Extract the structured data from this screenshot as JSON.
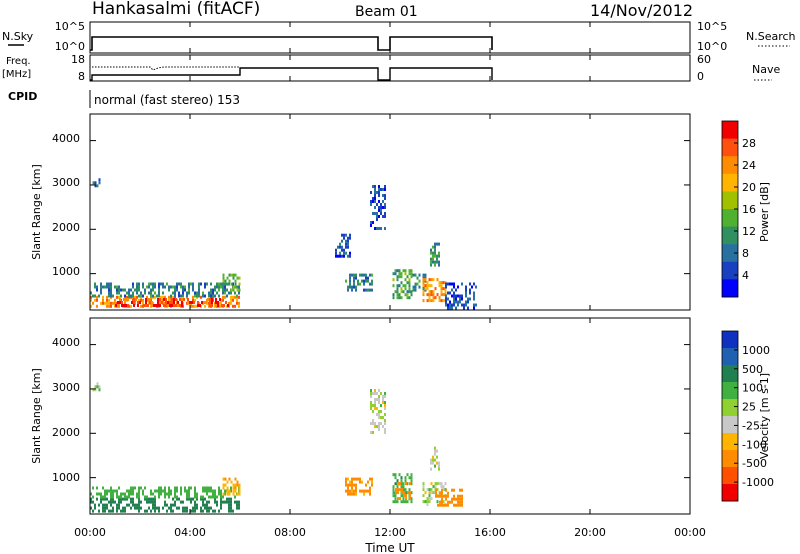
{
  "header": {
    "station": "Hankasalmi (fitACF)",
    "beam": "Beam 01",
    "date": "14/Nov/2012"
  },
  "noise_panel": {
    "left_label": "N.Sky",
    "right_label": "N.Search",
    "left_ticks": [
      "10^5",
      "10^0"
    ],
    "right_ticks": [
      "10^5",
      "10^0"
    ]
  },
  "freq_panel": {
    "left_label_1": "Freq.",
    "left_label_2": "[MHz]",
    "right_label": "Nave",
    "left_ticks": [
      "18",
      "8"
    ],
    "right_ticks": [
      "60",
      "0"
    ]
  },
  "cpid": {
    "label": "CPID",
    "value": "normal (fast stereo) 153"
  },
  "time_axis": {
    "label": "Time UT",
    "ticks": [
      "00:00",
      "04:00",
      "08:00",
      "12:00",
      "16:00",
      "20:00",
      "00:00"
    ]
  },
  "power_colorbar": {
    "label": "Power [dB]",
    "ticks": [
      "28",
      "24",
      "20",
      "16",
      "12",
      "8",
      "4"
    ],
    "colors": [
      "#f00000",
      "#ff5010",
      "#ff8c00",
      "#ffb400",
      "#a0c000",
      "#50b030",
      "#309060",
      "#2870a0",
      "#1840c0",
      "#0000ff"
    ]
  },
  "velocity_colorbar": {
    "label": "Velocity [m s-1]",
    "ticks": [
      "1000",
      "500",
      "100",
      "25",
      "-25",
      "-100",
      "-500",
      "-1000"
    ],
    "colors": [
      "#1030c0",
      "#2060b0",
      "#208050",
      "#40b040",
      "#90d030",
      "#c8c8c8",
      "#ffb400",
      "#ff8c00",
      "#ff5000",
      "#f00000"
    ]
  },
  "chart_data": [
    {
      "type": "heatmap",
      "title": "Power",
      "xlabel": "Time UT",
      "ylabel": "Slant Range [km]",
      "xlim": [
        0,
        24
      ],
      "ylim": [
        180,
        4600
      ],
      "yticks": [
        1000,
        2000,
        3000,
        4000
      ],
      "units": "dB",
      "clim": [
        0,
        30
      ],
      "regions": [
        {
          "t0": 0.0,
          "t1": 6.0,
          "r0": 250,
          "r1": 500,
          "value": 22
        },
        {
          "t0": 0.0,
          "t1": 6.0,
          "r0": 500,
          "r1": 800,
          "value": 9
        },
        {
          "t0": 1.0,
          "t1": 5.5,
          "r0": 300,
          "r1": 450,
          "value": 26
        },
        {
          "t0": 0.1,
          "t1": 0.4,
          "r0": 2950,
          "r1": 3150,
          "value": 7
        },
        {
          "t0": 5.3,
          "t1": 6.0,
          "r0": 600,
          "r1": 1000,
          "value": 14
        },
        {
          "t0": 9.8,
          "t1": 10.4,
          "r0": 1400,
          "r1": 1900,
          "value": 6
        },
        {
          "t0": 10.2,
          "t1": 11.3,
          "r0": 650,
          "r1": 1000,
          "value": 9
        },
        {
          "t0": 11.2,
          "t1": 11.8,
          "r0": 2000,
          "r1": 3000,
          "value": 5
        },
        {
          "t0": 12.1,
          "t1": 12.9,
          "r0": 450,
          "r1": 1100,
          "value": 12
        },
        {
          "t0": 12.9,
          "t1": 13.4,
          "r0": 650,
          "r1": 1000,
          "value": 10
        },
        {
          "t0": 13.3,
          "t1": 14.2,
          "r0": 400,
          "r1": 900,
          "value": 22
        },
        {
          "t0": 13.6,
          "t1": 14.0,
          "r0": 1200,
          "r1": 1700,
          "value": 11
        },
        {
          "t0": 14.2,
          "t1": 15.4,
          "r0": 250,
          "r1": 800,
          "value": 5
        }
      ]
    },
    {
      "type": "heatmap",
      "title": "Velocity",
      "xlabel": "Time UT",
      "ylabel": "Slant Range [km]",
      "xlim": [
        0,
        24
      ],
      "ylim": [
        180,
        4600
      ],
      "yticks": [
        1000,
        2000,
        3000,
        4000
      ],
      "units": "m s-1",
      "regions": [
        {
          "t0": 0.0,
          "t1": 6.0,
          "r0": 250,
          "r1": 550,
          "value": 150
        },
        {
          "t0": 0.0,
          "t1": 6.0,
          "r0": 550,
          "r1": 800,
          "value": 60
        },
        {
          "t0": 0.1,
          "t1": 0.4,
          "r0": 2950,
          "r1": 3150,
          "value": 0
        },
        {
          "t0": 5.3,
          "t1": 6.0,
          "r0": 600,
          "r1": 1000,
          "value": -80
        },
        {
          "t0": 10.2,
          "t1": 11.3,
          "r0": 650,
          "r1": 1000,
          "value": -120
        },
        {
          "t0": 11.2,
          "t1": 11.8,
          "r0": 2000,
          "r1": 3000,
          "value": 0
        },
        {
          "t0": 12.1,
          "t1": 12.9,
          "r0": 450,
          "r1": 1100,
          "value": 80
        },
        {
          "t0": 12.2,
          "t1": 12.8,
          "r0": 550,
          "r1": 900,
          "value": -300
        },
        {
          "t0": 13.3,
          "t1": 14.2,
          "r0": 400,
          "r1": 900,
          "value": 0
        },
        {
          "t0": 13.8,
          "t1": 14.9,
          "r0": 350,
          "r1": 750,
          "value": -300
        },
        {
          "t0": 13.6,
          "t1": 14.0,
          "r0": 1200,
          "r1": 1700,
          "value": 0
        }
      ]
    }
  ]
}
